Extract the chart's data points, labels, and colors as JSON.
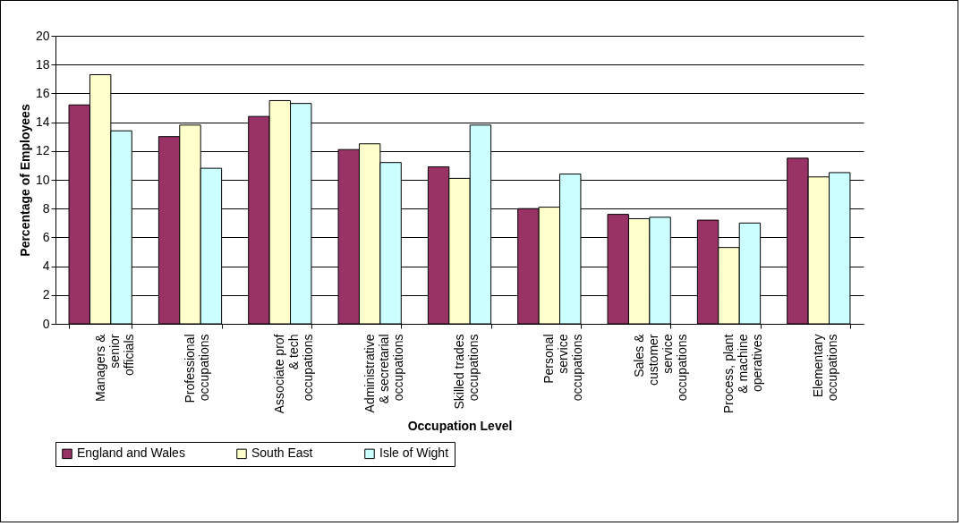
{
  "chart_data": {
    "type": "bar",
    "xlabel": "Occupation Level",
    "ylabel": "Percentage of Employees",
    "categories": [
      "Managers & senior officials",
      "Professional occupations",
      "Associate prof & tech occupations",
      "Administrative & secretarial occupations",
      "Skilled trades occupations",
      "Personal service occupations",
      "Sales & customer service occupations",
      "Process, plant & machine operatives",
      "Elementary occupations"
    ],
    "series": [
      {
        "name": "England and Wales",
        "color": "#993366",
        "values": [
          15.2,
          13.0,
          14.4,
          12.1,
          10.9,
          8.0,
          7.6,
          7.2,
          11.5
        ]
      },
      {
        "name": "South East",
        "color": "#ffffcc",
        "values": [
          17.3,
          13.8,
          15.5,
          12.5,
          10.1,
          8.1,
          7.3,
          5.3,
          10.2
        ]
      },
      {
        "name": "Isle of Wight",
        "color": "#ccffff",
        "values": [
          13.4,
          10.8,
          15.3,
          11.2,
          13.8,
          10.4,
          7.4,
          7.0,
          10.5
        ]
      }
    ],
    "ylim": [
      0,
      20
    ],
    "yticks": [
      0,
      2,
      4,
      6,
      8,
      10,
      12,
      14,
      16,
      18,
      20
    ],
    "grid": "y",
    "legend": "bottom"
  }
}
